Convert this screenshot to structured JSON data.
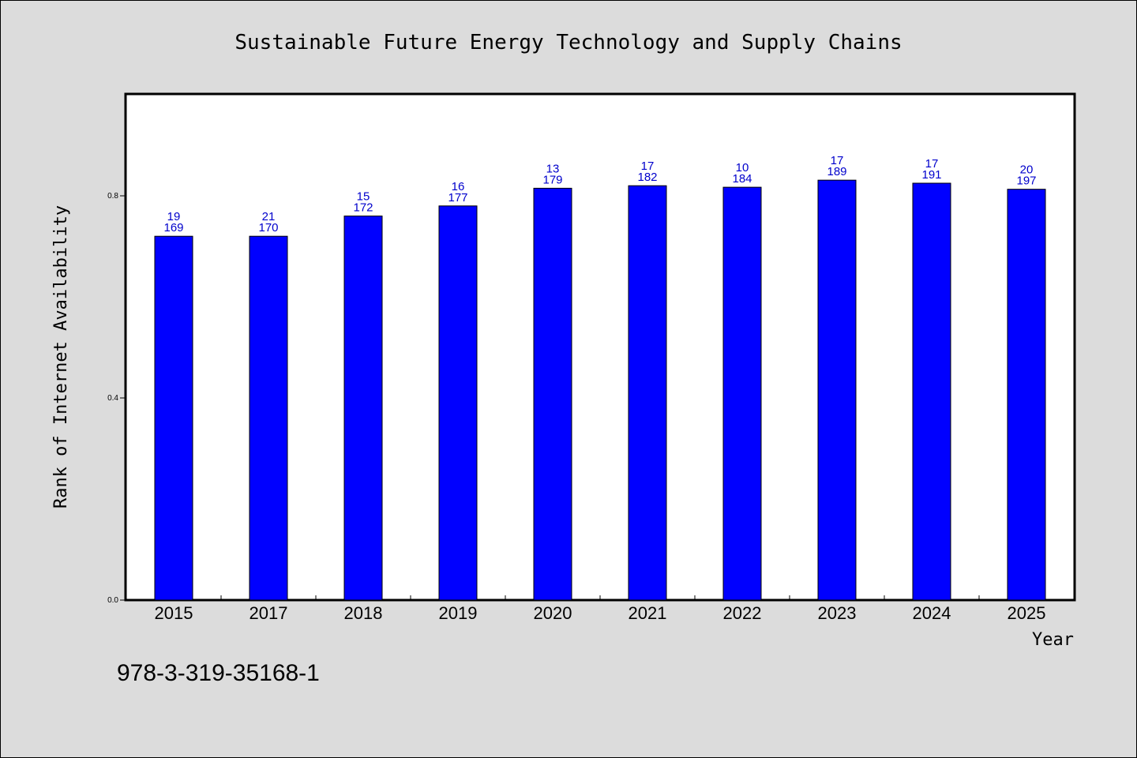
{
  "chart_data": {
    "type": "bar",
    "title": "Sustainable Future Energy Technology and Supply Chains",
    "xlabel": "Year",
    "ylabel": "Rank of Internet Availability",
    "categories": [
      "2015",
      "2017",
      "2018",
      "2019",
      "2020",
      "2021",
      "2022",
      "2023",
      "2024",
      "2025"
    ],
    "values": [
      0.72,
      0.72,
      0.76,
      0.78,
      0.815,
      0.82,
      0.817,
      0.831,
      0.825,
      0.813
    ],
    "label_top": [
      "19",
      "21",
      "15",
      "16",
      "13",
      "17",
      "10",
      "17",
      "17",
      "20"
    ],
    "label_bottom": [
      "169",
      "170",
      "172",
      "177",
      "179",
      "182",
      "184",
      "189",
      "191",
      "197"
    ],
    "ylim": [
      0,
      1.0
    ],
    "yticks": [
      0.0,
      0.4,
      0.8
    ],
    "ytick_labels": [
      "0.0",
      "0.4",
      "0.8"
    ],
    "bar_color": "#0000ff",
    "label_color": "#0000cc",
    "grid": false,
    "legend": "none"
  },
  "footer": {
    "isbn": "978-3-319-35168-1"
  },
  "colors": {
    "background": "#dcdcdc",
    "plot_background": "#ffffff"
  }
}
